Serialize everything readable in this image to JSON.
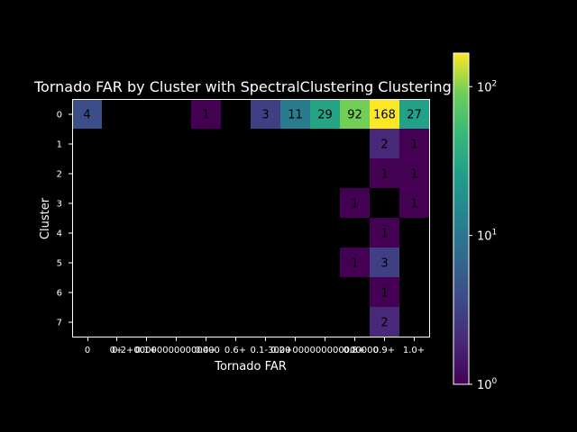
{
  "chart_data": {
    "type": "heatmap",
    "title": "Tornado FAR by Cluster with SpectralClustering Clustering",
    "xlabel": "Tornado FAR",
    "ylabel": "Cluster",
    "x_categories": [
      "0",
      "0+",
      "0.1-3000",
      "0.2+000000000000000",
      "0.4+",
      "0.6+",
      "0.8+",
      "0.9+",
      "1.0+"
    ],
    "x_tick_labels": [
      "0",
      "0+",
      "0.1+",
      "0.2+",
      "0.4+",
      "0.6+",
      "0.8+",
      "0.9+",
      "1.0+"
    ],
    "y_categories": [
      "0",
      "1",
      "2",
      "3",
      "4",
      "5",
      "6",
      "7"
    ],
    "columns": 12,
    "values": [
      [
        4,
        null,
        null,
        null,
        1,
        null,
        3,
        11,
        29,
        92,
        168,
        27
      ],
      [
        null,
        null,
        null,
        null,
        null,
        null,
        null,
        null,
        null,
        null,
        2,
        1
      ],
      [
        null,
        null,
        null,
        null,
        null,
        null,
        null,
        null,
        null,
        null,
        1,
        1
      ],
      [
        null,
        null,
        null,
        null,
        null,
        null,
        null,
        null,
        null,
        1,
        null,
        1
      ],
      [
        null,
        null,
        null,
        null,
        null,
        null,
        null,
        null,
        null,
        null,
        1,
        null
      ],
      [
        null,
        null,
        null,
        null,
        null,
        null,
        null,
        null,
        null,
        1,
        3,
        null
      ],
      [
        null,
        null,
        null,
        null,
        null,
        null,
        null,
        null,
        null,
        null,
        1,
        null
      ],
      [
        null,
        null,
        null,
        null,
        null,
        null,
        null,
        null,
        null,
        null,
        2,
        null
      ]
    ],
    "colormap": "viridis",
    "color_scale": "log",
    "colorbar_range": [
      1,
      168
    ],
    "colorbar_ticks": [
      {
        "value": 1,
        "base": "10",
        "exp": "0"
      },
      {
        "value": 10,
        "base": "10",
        "exp": "1"
      },
      {
        "value": 100,
        "base": "10",
        "exp": "2"
      }
    ],
    "x_tick_labels_raw": [
      "0",
      "0+",
      "0.1+3000",
      "0.2+000000000",
      "0.4+0000",
      "0.6+00000",
      "0.7000000000",
      "0.8+000000",
      "0.9+",
      "1.0+"
    ],
    "grid": false
  }
}
